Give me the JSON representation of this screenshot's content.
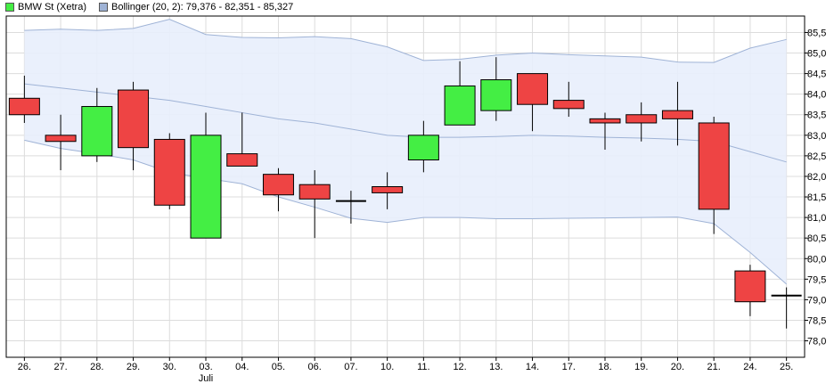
{
  "legend": {
    "series_label": "BMW St (Xetra)",
    "bollinger_label": "Bollinger (20, 2): 79,376 - 82,351 - 85,327",
    "up_color": "#44ee44",
    "down_color": "#ee4444",
    "band_fill": "#e8eefc",
    "band_line": "#9fb3d6"
  },
  "chart_data": {
    "type": "candlestick",
    "title": "",
    "ylim": [
      77.6,
      85.9
    ],
    "y_ticks": [
      78.0,
      78.5,
      79.0,
      79.5,
      80.0,
      80.5,
      81.0,
      81.5,
      82.0,
      82.5,
      83.0,
      83.5,
      84.0,
      84.5,
      85.0,
      85.5
    ],
    "y_tick_labels": [
      "78,0",
      "78,5",
      "79,0",
      "79,5",
      "80,0",
      "80,5",
      "81,0",
      "81,5",
      "82,0",
      "82,5",
      "83,0",
      "83,5",
      "84,0",
      "84,5",
      "85,0",
      "85,5"
    ],
    "categories": [
      "26.",
      "27.",
      "28.",
      "29.",
      "30.",
      "03.",
      "04.",
      "05.",
      "06.",
      "07.",
      "10.",
      "11.",
      "12.",
      "13.",
      "14.",
      "17.",
      "18.",
      "19.",
      "20.",
      "21.",
      "24.",
      "25."
    ],
    "month_label": {
      "index": 5,
      "text": "Juli"
    },
    "candles": [
      {
        "open": 83.9,
        "high": 84.45,
        "low": 83.3,
        "close": 83.5
      },
      {
        "open": 83.0,
        "high": 83.5,
        "low": 82.15,
        "close": 82.85
      },
      {
        "open": 82.5,
        "high": 84.15,
        "low": 82.35,
        "close": 83.7
      },
      {
        "open": 84.1,
        "high": 84.3,
        "low": 82.15,
        "close": 82.7
      },
      {
        "open": 82.9,
        "high": 83.05,
        "low": 81.2,
        "close": 81.3
      },
      {
        "open": 80.5,
        "high": 83.55,
        "low": 80.5,
        "close": 83.0
      },
      {
        "open": 82.55,
        "high": 83.55,
        "low": 82.25,
        "close": 82.25
      },
      {
        "open": 82.05,
        "high": 82.2,
        "low": 81.15,
        "close": 81.55
      },
      {
        "open": 81.8,
        "high": 82.15,
        "low": 80.5,
        "close": 81.45
      },
      {
        "open": 81.4,
        "high": 81.65,
        "low": 80.85,
        "close": 81.4
      },
      {
        "open": 81.75,
        "high": 82.1,
        "low": 81.2,
        "close": 81.6
      },
      {
        "open": 82.4,
        "high": 83.35,
        "low": 82.1,
        "close": 83.0
      },
      {
        "open": 83.25,
        "high": 84.8,
        "low": 83.25,
        "close": 84.2
      },
      {
        "open": 83.6,
        "high": 84.9,
        "low": 83.35,
        "close": 84.35
      },
      {
        "open": 84.5,
        "high": 84.5,
        "low": 83.1,
        "close": 83.75
      },
      {
        "open": 83.85,
        "high": 84.3,
        "low": 83.45,
        "close": 83.65
      },
      {
        "open": 83.4,
        "high": 83.55,
        "low": 82.65,
        "close": 83.3
      },
      {
        "open": 83.5,
        "high": 83.8,
        "low": 82.85,
        "close": 83.3
      },
      {
        "open": 83.6,
        "high": 84.3,
        "low": 82.75,
        "close": 83.4
      },
      {
        "open": 83.3,
        "high": 83.45,
        "low": 80.6,
        "close": 81.2
      },
      {
        "open": 79.7,
        "high": 79.85,
        "low": 78.6,
        "close": 78.95
      },
      {
        "open": 79.1,
        "high": 79.3,
        "low": 78.3,
        "close": 79.1
      }
    ],
    "bollinger": {
      "upper": [
        85.55,
        85.58,
        85.55,
        85.6,
        85.82,
        85.45,
        85.38,
        85.37,
        85.4,
        85.35,
        85.15,
        84.82,
        84.85,
        84.95,
        85.0,
        84.96,
        84.93,
        84.9,
        84.78,
        84.77,
        85.12,
        85.33
      ],
      "middle": [
        84.25,
        84.15,
        84.05,
        83.95,
        83.85,
        83.7,
        83.55,
        83.4,
        83.3,
        83.15,
        83.0,
        82.95,
        82.95,
        82.97,
        83.0,
        82.98,
        82.95,
        82.93,
        82.9,
        82.85,
        82.6,
        82.35
      ],
      "lower": [
        82.88,
        82.68,
        82.55,
        82.4,
        82.1,
        81.95,
        81.82,
        81.5,
        81.25,
        80.98,
        80.88,
        81.0,
        81.0,
        80.97,
        80.97,
        80.98,
        80.99,
        81.0,
        81.01,
        80.85,
        80.15,
        79.38
      ]
    }
  }
}
